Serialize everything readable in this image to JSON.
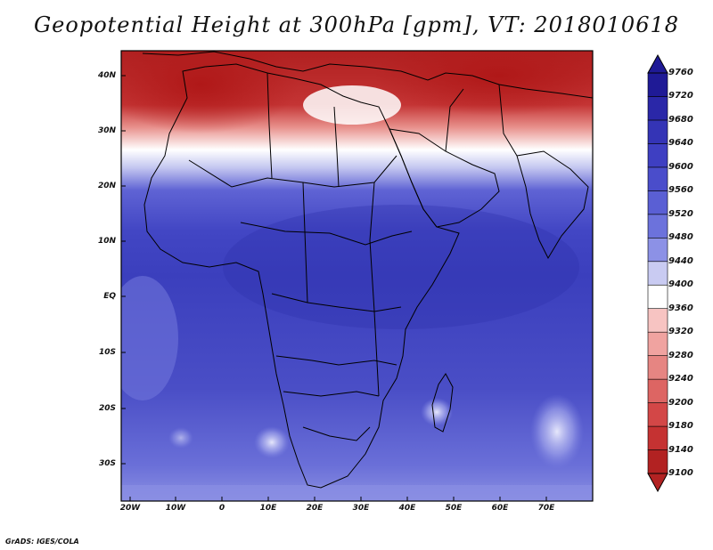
{
  "title": "Geopotential Height at 300hPa [gpm], VT: 2018010618",
  "credit": "GrADS: IGES/COLA",
  "map": {
    "lat_labels": [
      "40N",
      "30N",
      "20N",
      "10N",
      "EQ",
      "10S",
      "20S",
      "30S"
    ],
    "lon_labels": [
      "20W",
      "10W",
      "0",
      "10E",
      "20E",
      "30E",
      "40E",
      "50E",
      "60E",
      "70E"
    ]
  },
  "colorbar": {
    "labels": [
      "9760",
      "9720",
      "9680",
      "9640",
      "9600",
      "9560",
      "9520",
      "9480",
      "9440",
      "9400",
      "9360",
      "9320",
      "9280",
      "9240",
      "9200",
      "9180",
      "9140",
      "9100"
    ],
    "colors": [
      "#1f1a96",
      "#2a27a8",
      "#3434b6",
      "#3e3fc2",
      "#4a4dcb",
      "#5a5fd4",
      "#6c72dc",
      "#8c91e6",
      "#c9cbf2",
      "#ffffff",
      "#f7c4c2",
      "#f0a3a0",
      "#e68582",
      "#dd6563",
      "#d34747",
      "#c53232",
      "#b22222"
    ]
  }
}
